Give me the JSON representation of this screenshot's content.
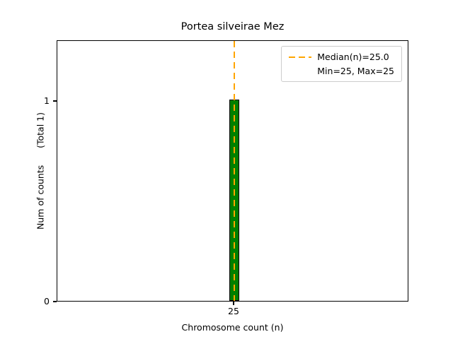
{
  "chart_data": {
    "type": "bar",
    "title": "Portea silveirae Mez",
    "xlabel": "Chromosome count (n)",
    "ylabel": "Num of counts      (Total 1)",
    "categories": [
      25
    ],
    "values": [
      1
    ],
    "total_counts": 1,
    "xticks": [
      "25"
    ],
    "yticks": [
      "0",
      "1"
    ],
    "ylim": [
      0,
      1.3
    ],
    "grid": false,
    "bar_color": "#008000",
    "bar_edge_color": "#000000",
    "median_line": {
      "value": 25.0,
      "color": "#FFA500",
      "style": "dashed",
      "orientation": "vertical"
    },
    "legend": {
      "position": "upper right",
      "entries": [
        {
          "label": "Median(n)=25.0",
          "handle": "dashed-orange-line"
        },
        {
          "label": "Min=25, Max=25",
          "handle": "none"
        }
      ]
    }
  }
}
